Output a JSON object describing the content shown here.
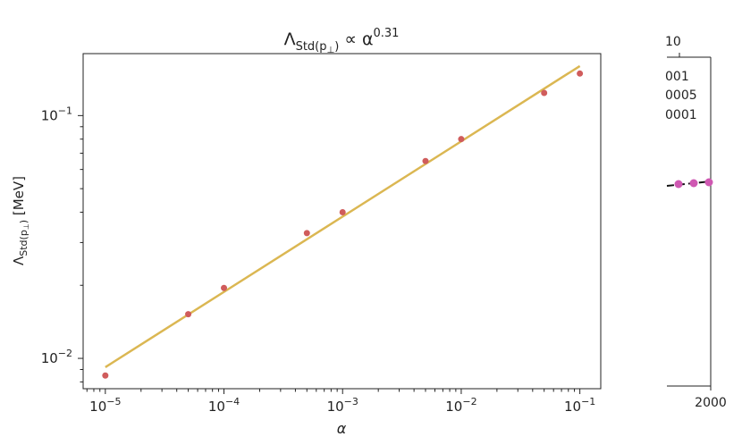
{
  "chart_data": [
    {
      "type": "scatter",
      "title": "Λ_Std(p⊥) ∝ α^0.31",
      "title_parts": {
        "base": "Λ",
        "sub": "Std(p",
        "sub_perp": "⊥",
        "sub_close": ")",
        "prop": " ∝ α",
        "exp": "0.31"
      },
      "xlabel": "α",
      "ylabel": "Λ_Std(p⊥) [MeV]",
      "ylabel_parts": {
        "base": "Λ",
        "sub": "Std(p",
        "sub_perp": "⊥",
        "sub_close": ")",
        "unit": " [MeV]"
      },
      "x_scale": "log",
      "y_scale": "log",
      "xlim": [
        6.5e-06,
        0.15
      ],
      "ylim": [
        0.0075,
        0.18
      ],
      "x_ticks": [
        {
          "value": 1e-05,
          "base": "10",
          "exp": "−5"
        },
        {
          "value": 0.0001,
          "base": "10",
          "exp": "−4"
        },
        {
          "value": 0.001,
          "base": "10",
          "exp": "−3"
        },
        {
          "value": 0.01,
          "base": "10",
          "exp": "−2"
        },
        {
          "value": 0.1,
          "base": "10",
          "exp": "−1"
        }
      ],
      "y_ticks": [
        {
          "value": 0.01,
          "base": "10",
          "exp": "−2"
        },
        {
          "value": 0.1,
          "base": "10",
          "exp": "−1"
        }
      ],
      "series": [
        {
          "kind": "points",
          "color": "#d05c5c",
          "x": [
            1e-05,
            5e-05,
            0.0001,
            0.0005,
            0.001,
            0.005,
            0.01,
            0.05,
            0.1
          ],
          "y": [
            0.0085,
            0.0152,
            0.0195,
            0.0328,
            0.04,
            0.065,
            0.08,
            0.124,
            0.149
          ]
        },
        {
          "kind": "fit-line",
          "color": "#dbb752",
          "x": [
            1e-05,
            0.1
          ],
          "y": [
            0.0092,
            0.16
          ]
        }
      ],
      "grid": false,
      "legend": "none"
    },
    {
      "type": "scatter",
      "partial": true,
      "top_tick_fragment": "10",
      "legend_fragments": [
        "001",
        "0005",
        "0001"
      ],
      "x_ticks": [
        {
          "value": 2000,
          "label": "2000"
        }
      ],
      "series": [
        {
          "kind": "points",
          "color": "#cf58b2",
          "y_level": "flat"
        },
        {
          "kind": "dashed-line",
          "color": "#111111"
        }
      ]
    }
  ]
}
